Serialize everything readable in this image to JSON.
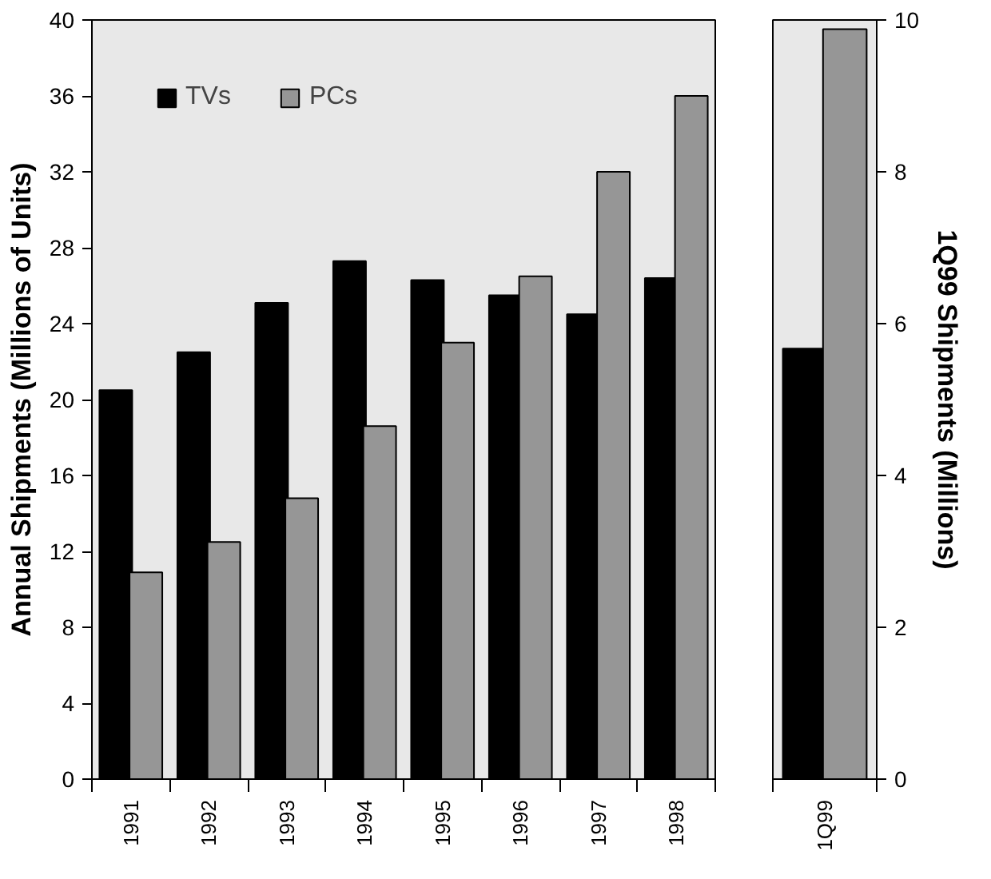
{
  "chart_data": [
    {
      "type": "bar",
      "categories": [
        "1991",
        "1992",
        "1993",
        "1994",
        "1995",
        "1996",
        "1997",
        "1998"
      ],
      "ylabel": "Annual Shipments (Millions of Units)",
      "ylim": [
        0,
        40
      ],
      "yticks": [
        0,
        4,
        8,
        12,
        16,
        20,
        24,
        28,
        32,
        36,
        40
      ],
      "grid": false,
      "legend": "top left",
      "series": [
        {
          "name": "TVs",
          "color": "#000000",
          "values": [
            20.5,
            22.5,
            25.1,
            27.3,
            26.3,
            25.5,
            24.5,
            26.4
          ]
        },
        {
          "name": "PCs",
          "color": "#969696",
          "values": [
            10.9,
            12.5,
            14.8,
            18.6,
            23.0,
            26.5,
            32.0,
            36.0
          ]
        }
      ]
    },
    {
      "type": "bar",
      "categories": [
        "1Q99"
      ],
      "ylabel": "1Q99 Shipments (Millions)",
      "ylim": [
        0,
        10
      ],
      "yticks": [
        0,
        2,
        4,
        6,
        8,
        10
      ],
      "grid": false,
      "series": [
        {
          "color": "#000000",
          "values": [
            5.67
          ]
        },
        {
          "color": "#969696",
          "values": [
            9.88
          ]
        }
      ]
    }
  ]
}
